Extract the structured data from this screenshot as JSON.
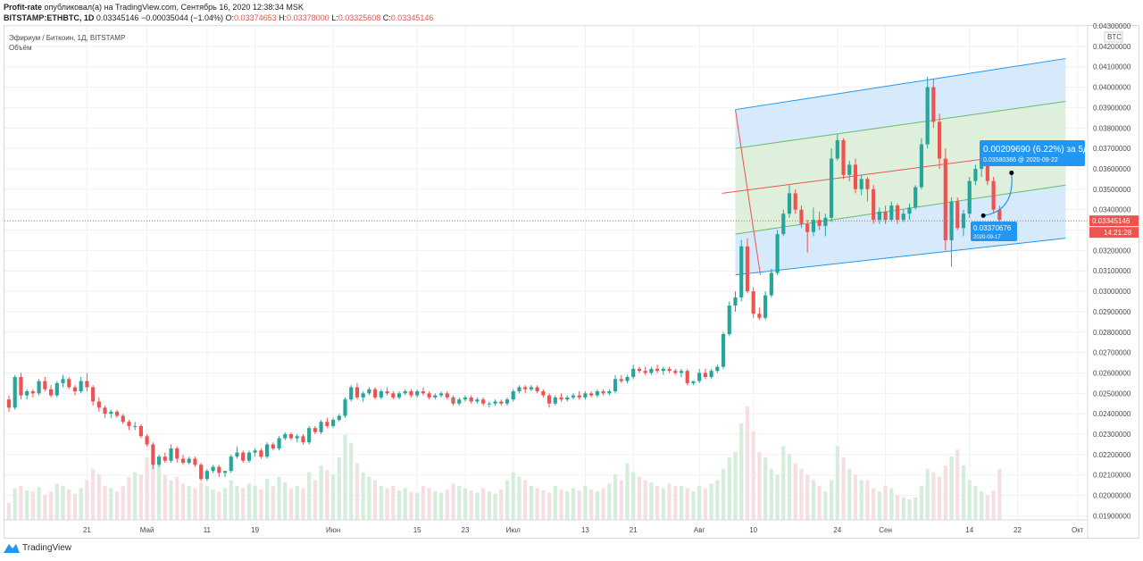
{
  "header": {
    "author": "Profit-rate",
    "published_text": "опубликовал(а) на TradingView.com, Сентябрь 16, 2020 12:38:34 MSK",
    "symbol": "BITSTAMP:ETHBTC, 1D",
    "last": "0.03345146",
    "change": "−0.00035044 (−1.04%)",
    "o_label": "O:",
    "o": "0.03374653",
    "h_label": "H:",
    "h": "0.03378000",
    "l_label": "L:",
    "l": "0.03325608",
    "c_label": "C:",
    "c": "0.03345146"
  },
  "legend": {
    "title": "Эфириум / Биткоин, 1Д, BITSTAMP",
    "volume": "Объём"
  },
  "footer": {
    "brand": "TradingView"
  },
  "colors": {
    "up": "#26a69a",
    "down": "#ef5350",
    "vol_up": "#d5eddb",
    "vol_down": "#f5dfe2",
    "channel_outer": "#cfe6fb",
    "channel_inner": "#dff0d8",
    "accent": "#2196f3"
  },
  "chart_data": {
    "type": "candlestick",
    "price_axis": {
      "unit": "BTC",
      "ticks": [
        "0.04300000",
        "0.04200000",
        "0.04100000",
        "0.04000000",
        "0.03900000",
        "0.03800000",
        "0.03700000",
        "0.03600000",
        "0.03500000",
        "0.03400000",
        "0.03300000",
        "0.03200000",
        "0.03100000",
        "0.03000000",
        "0.02900000",
        "0.02800000",
        "0.02700000",
        "0.02600000",
        "0.02500000",
        "0.02400000",
        "0.02300000",
        "0.02200000",
        "0.02100000",
        "0.02000000",
        "0.01900000"
      ],
      "ylim": [
        0.0188,
        0.043
      ]
    },
    "time_axis": {
      "labels": [
        "21",
        "Май",
        "11",
        "19",
        "Июн",
        "15",
        "23",
        "Июл",
        "13",
        "21",
        "Авг",
        "10",
        "24",
        "Сен",
        "14",
        "22",
        "Окт"
      ],
      "start_date": "2020-04-08",
      "end_date": "2020-10-02"
    },
    "candles": [
      [
        0.0247,
        0.0249,
        0.0241,
        0.0243
      ],
      [
        0.0243,
        0.0259,
        0.0242,
        0.0258
      ],
      [
        0.0258,
        0.026,
        0.0247,
        0.0249
      ],
      [
        0.0249,
        0.0252,
        0.0247,
        0.0251
      ],
      [
        0.0251,
        0.0252,
        0.0248,
        0.025
      ],
      [
        0.025,
        0.0257,
        0.0249,
        0.0256
      ],
      [
        0.0256,
        0.0258,
        0.0251,
        0.0252
      ],
      [
        0.0252,
        0.0254,
        0.0248,
        0.0249
      ],
      [
        0.0249,
        0.0256,
        0.0248,
        0.0255
      ],
      [
        0.0255,
        0.0259,
        0.0253,
        0.0257
      ],
      [
        0.0257,
        0.0258,
        0.0252,
        0.0253
      ],
      [
        0.0253,
        0.0254,
        0.0249,
        0.0251
      ],
      [
        0.0251,
        0.0258,
        0.025,
        0.0256
      ],
      [
        0.0256,
        0.026,
        0.0251,
        0.0253
      ],
      [
        0.0253,
        0.0254,
        0.0244,
        0.0246
      ],
      [
        0.0246,
        0.0248,
        0.0241,
        0.0243
      ],
      [
        0.0243,
        0.0244,
        0.0238,
        0.024
      ],
      [
        0.024,
        0.0242,
        0.0238,
        0.0241
      ],
      [
        0.0241,
        0.0242,
        0.0238,
        0.0239
      ],
      [
        0.0239,
        0.024,
        0.0235,
        0.0236
      ],
      [
        0.0236,
        0.0237,
        0.0232,
        0.0234
      ],
      [
        0.0234,
        0.0236,
        0.0232,
        0.0234
      ],
      [
        0.0234,
        0.0235,
        0.0228,
        0.0229
      ],
      [
        0.0229,
        0.023,
        0.0224,
        0.0225
      ],
      [
        0.0225,
        0.0226,
        0.0213,
        0.0215
      ],
      [
        0.0215,
        0.022,
        0.0214,
        0.0219
      ],
      [
        0.0219,
        0.0221,
        0.0216,
        0.0217
      ],
      [
        0.0217,
        0.0225,
        0.0216,
        0.0223
      ],
      [
        0.0223,
        0.0224,
        0.0216,
        0.0218
      ],
      [
        0.0218,
        0.022,
        0.0215,
        0.0216
      ],
      [
        0.0216,
        0.0219,
        0.0215,
        0.0218
      ],
      [
        0.0218,
        0.0219,
        0.0214,
        0.0215
      ],
      [
        0.0215,
        0.0216,
        0.0207,
        0.0208
      ],
      [
        0.0208,
        0.0213,
        0.0207,
        0.0212
      ],
      [
        0.0212,
        0.0215,
        0.0211,
        0.0214
      ],
      [
        0.0214,
        0.0215,
        0.0209,
        0.0211
      ],
      [
        0.0211,
        0.0212,
        0.0209,
        0.0212
      ],
      [
        0.0212,
        0.022,
        0.0211,
        0.0219
      ],
      [
        0.0219,
        0.0224,
        0.0218,
        0.0221
      ],
      [
        0.0221,
        0.0222,
        0.0216,
        0.0217
      ],
      [
        0.0217,
        0.0222,
        0.0216,
        0.0221
      ],
      [
        0.0221,
        0.0223,
        0.0219,
        0.0222
      ],
      [
        0.0222,
        0.0223,
        0.0218,
        0.0219
      ],
      [
        0.0219,
        0.0226,
        0.0218,
        0.0225
      ],
      [
        0.0225,
        0.0226,
        0.0222,
        0.0223
      ],
      [
        0.0223,
        0.0229,
        0.0222,
        0.0228
      ],
      [
        0.0228,
        0.0231,
        0.0227,
        0.023
      ],
      [
        0.023,
        0.0231,
        0.0227,
        0.0228
      ],
      [
        0.0228,
        0.023,
        0.0226,
        0.0229
      ],
      [
        0.0229,
        0.023,
        0.0225,
        0.0226
      ],
      [
        0.0226,
        0.0234,
        0.0225,
        0.0233
      ],
      [
        0.0233,
        0.0234,
        0.023,
        0.0231
      ],
      [
        0.0231,
        0.0237,
        0.023,
        0.0236
      ],
      [
        0.0236,
        0.0238,
        0.0233,
        0.0234
      ],
      [
        0.0234,
        0.0238,
        0.0233,
        0.0237
      ],
      [
        0.0237,
        0.024,
        0.0236,
        0.0239
      ],
      [
        0.0239,
        0.0248,
        0.0238,
        0.0247
      ],
      [
        0.0247,
        0.0254,
        0.0246,
        0.0253
      ],
      [
        0.0253,
        0.0255,
        0.0247,
        0.0248
      ],
      [
        0.0248,
        0.0251,
        0.0246,
        0.025
      ],
      [
        0.025,
        0.0253,
        0.0249,
        0.0252
      ],
      [
        0.0252,
        0.0253,
        0.0247,
        0.0248
      ],
      [
        0.0248,
        0.0252,
        0.0247,
        0.0251
      ],
      [
        0.0251,
        0.0253,
        0.0249,
        0.025
      ],
      [
        0.025,
        0.0251,
        0.0247,
        0.0248
      ],
      [
        0.0248,
        0.0251,
        0.0247,
        0.025
      ],
      [
        0.025,
        0.0252,
        0.0249,
        0.0251
      ],
      [
        0.0251,
        0.0252,
        0.0248,
        0.0249
      ],
      [
        0.0249,
        0.0252,
        0.0248,
        0.0251
      ],
      [
        0.0251,
        0.0253,
        0.0249,
        0.025
      ],
      [
        0.025,
        0.0251,
        0.0247,
        0.0248
      ],
      [
        0.0248,
        0.025,
        0.0247,
        0.0249
      ],
      [
        0.0249,
        0.0251,
        0.0248,
        0.025
      ],
      [
        0.025,
        0.0251,
        0.0247,
        0.0248
      ],
      [
        0.0248,
        0.0249,
        0.0244,
        0.0245
      ],
      [
        0.0245,
        0.0248,
        0.0244,
        0.0247
      ],
      [
        0.0247,
        0.0249,
        0.0246,
        0.0248
      ],
      [
        0.0248,
        0.0249,
        0.0245,
        0.0246
      ],
      [
        0.0246,
        0.0248,
        0.0245,
        0.0247
      ],
      [
        0.0247,
        0.0248,
        0.0244,
        0.0245
      ],
      [
        0.0245,
        0.0246,
        0.0243,
        0.0245
      ],
      [
        0.0245,
        0.0247,
        0.0244,
        0.0246
      ],
      [
        0.0246,
        0.0247,
        0.0244,
        0.0245
      ],
      [
        0.0245,
        0.0248,
        0.0244,
        0.0247
      ],
      [
        0.0247,
        0.0252,
        0.0246,
        0.0251
      ],
      [
        0.0251,
        0.0254,
        0.025,
        0.0253
      ],
      [
        0.0253,
        0.0254,
        0.025,
        0.0252
      ],
      [
        0.0252,
        0.0254,
        0.0251,
        0.0253
      ],
      [
        0.0253,
        0.0254,
        0.025,
        0.0251
      ],
      [
        0.0251,
        0.0252,
        0.0248,
        0.0249
      ],
      [
        0.0249,
        0.025,
        0.0243,
        0.0245
      ],
      [
        0.0245,
        0.0249,
        0.0244,
        0.0248
      ],
      [
        0.0248,
        0.025,
        0.0246,
        0.0247
      ],
      [
        0.0247,
        0.0249,
        0.0246,
        0.0248
      ],
      [
        0.0248,
        0.025,
        0.0247,
        0.0249
      ],
      [
        0.0249,
        0.0251,
        0.0247,
        0.0248
      ],
      [
        0.0248,
        0.0251,
        0.0247,
        0.025
      ],
      [
        0.025,
        0.0251,
        0.0248,
        0.0249
      ],
      [
        0.0249,
        0.0252,
        0.0248,
        0.0251
      ],
      [
        0.0251,
        0.0252,
        0.0249,
        0.025
      ],
      [
        0.025,
        0.0252,
        0.0249,
        0.0251
      ],
      [
        0.0251,
        0.0259,
        0.025,
        0.0257
      ],
      [
        0.0257,
        0.0259,
        0.0255,
        0.0256
      ],
      [
        0.0256,
        0.0259,
        0.0255,
        0.0258
      ],
      [
        0.0258,
        0.0264,
        0.0257,
        0.0262
      ],
      [
        0.0262,
        0.0263,
        0.026,
        0.0261
      ],
      [
        0.0261,
        0.0263,
        0.0259,
        0.026
      ],
      [
        0.026,
        0.0263,
        0.0259,
        0.0262
      ],
      [
        0.0262,
        0.0264,
        0.026,
        0.0261
      ],
      [
        0.0261,
        0.0263,
        0.0259,
        0.0262
      ],
      [
        0.0262,
        0.0263,
        0.026,
        0.0261
      ],
      [
        0.0261,
        0.0262,
        0.0259,
        0.026
      ],
      [
        0.026,
        0.0262,
        0.0258,
        0.0261
      ],
      [
        0.0261,
        0.0262,
        0.0254,
        0.0255
      ],
      [
        0.0255,
        0.0256,
        0.0254,
        0.0256
      ],
      [
        0.0256,
        0.0262,
        0.0255,
        0.026
      ],
      [
        0.026,
        0.0262,
        0.0257,
        0.0258
      ],
      [
        0.0258,
        0.0262,
        0.0257,
        0.0261
      ],
      [
        0.0261,
        0.0264,
        0.026,
        0.0263
      ],
      [
        0.0263,
        0.028,
        0.0262,
        0.0279
      ],
      [
        0.0279,
        0.0295,
        0.0278,
        0.0293
      ],
      [
        0.0293,
        0.03,
        0.029,
        0.0297
      ],
      [
        0.0297,
        0.0325,
        0.0295,
        0.0322
      ],
      [
        0.0322,
        0.0326,
        0.0299,
        0.03
      ],
      [
        0.03,
        0.0302,
        0.0287,
        0.0289
      ],
      [
        0.0289,
        0.0292,
        0.0286,
        0.0287
      ],
      [
        0.0287,
        0.03,
        0.0286,
        0.0298
      ],
      [
        0.0298,
        0.0311,
        0.0297,
        0.0309
      ],
      [
        0.0309,
        0.033,
        0.0308,
        0.0328
      ],
      [
        0.0328,
        0.034,
        0.0327,
        0.0338
      ],
      [
        0.0338,
        0.0352,
        0.0336,
        0.0348
      ],
      [
        0.0348,
        0.035,
        0.0338,
        0.034
      ],
      [
        0.034,
        0.0342,
        0.0331,
        0.0333
      ],
      [
        0.0333,
        0.0335,
        0.0319,
        0.0329
      ],
      [
        0.0329,
        0.0341,
        0.0327,
        0.0335
      ],
      [
        0.0335,
        0.0339,
        0.033,
        0.0332
      ],
      [
        0.0332,
        0.0338,
        0.0327,
        0.0336
      ],
      [
        0.0336,
        0.037,
        0.0334,
        0.0365
      ],
      [
        0.0365,
        0.0377,
        0.0364,
        0.0374
      ],
      [
        0.0374,
        0.0375,
        0.0355,
        0.0357
      ],
      [
        0.0357,
        0.0364,
        0.0354,
        0.0362
      ],
      [
        0.0362,
        0.0365,
        0.0348,
        0.035
      ],
      [
        0.035,
        0.0357,
        0.0347,
        0.0355
      ],
      [
        0.0355,
        0.0356,
        0.0344,
        0.035
      ],
      [
        0.035,
        0.0352,
        0.0333,
        0.0335
      ],
      [
        0.0335,
        0.0341,
        0.0333,
        0.0339
      ],
      [
        0.0339,
        0.0342,
        0.0333,
        0.0335
      ],
      [
        0.0335,
        0.0344,
        0.0334,
        0.0342
      ],
      [
        0.0342,
        0.0343,
        0.0333,
        0.0335
      ],
      [
        0.0335,
        0.034,
        0.0334,
        0.0338
      ],
      [
        0.0338,
        0.0343,
        0.0335,
        0.0341
      ],
      [
        0.0341,
        0.0352,
        0.034,
        0.0351
      ],
      [
        0.0351,
        0.0375,
        0.035,
        0.0372
      ],
      [
        0.0372,
        0.0405,
        0.037,
        0.04
      ],
      [
        0.04,
        0.0404,
        0.038,
        0.0383
      ],
      [
        0.0383,
        0.0387,
        0.036,
        0.0365
      ],
      [
        0.0365,
        0.037,
        0.032,
        0.0325
      ],
      [
        0.0325,
        0.0346,
        0.0312,
        0.0344
      ],
      [
        0.0344,
        0.0346,
        0.033,
        0.0331
      ],
      [
        0.0331,
        0.034,
        0.0327,
        0.0338
      ],
      [
        0.0338,
        0.0356,
        0.0336,
        0.0354
      ],
      [
        0.0354,
        0.0362,
        0.0352,
        0.036
      ],
      [
        0.036,
        0.0372,
        0.0356,
        0.037
      ],
      [
        0.037,
        0.0371,
        0.0352,
        0.0354
      ],
      [
        0.0354,
        0.0356,
        0.0338,
        0.034
      ],
      [
        0.034,
        0.0342,
        0.0333,
        0.0335
      ]
    ],
    "volume_relative": [
      0.15,
      0.28,
      0.3,
      0.26,
      0.25,
      0.29,
      0.22,
      0.25,
      0.32,
      0.3,
      0.27,
      0.23,
      0.28,
      0.35,
      0.45,
      0.4,
      0.3,
      0.28,
      0.25,
      0.3,
      0.38,
      0.42,
      0.4,
      0.55,
      0.6,
      0.48,
      0.4,
      0.35,
      0.38,
      0.32,
      0.3,
      0.28,
      0.33,
      0.3,
      0.27,
      0.25,
      0.28,
      0.35,
      0.3,
      0.28,
      0.32,
      0.3,
      0.27,
      0.36,
      0.3,
      0.38,
      0.33,
      0.28,
      0.3,
      0.28,
      0.42,
      0.35,
      0.48,
      0.44,
      0.4,
      0.55,
      0.75,
      0.68,
      0.5,
      0.42,
      0.38,
      0.35,
      0.3,
      0.28,
      0.3,
      0.26,
      0.28,
      0.25,
      0.24,
      0.3,
      0.28,
      0.25,
      0.24,
      0.27,
      0.32,
      0.3,
      0.28,
      0.26,
      0.24,
      0.28,
      0.25,
      0.23,
      0.27,
      0.35,
      0.42,
      0.38,
      0.35,
      0.3,
      0.28,
      0.26,
      0.24,
      0.3,
      0.27,
      0.25,
      0.28,
      0.26,
      0.3,
      0.27,
      0.25,
      0.28,
      0.32,
      0.4,
      0.35,
      0.5,
      0.42,
      0.38,
      0.35,
      0.33,
      0.3,
      0.28,
      0.32,
      0.3,
      0.3,
      0.28,
      0.25,
      0.3,
      0.28,
      0.32,
      0.35,
      0.45,
      0.55,
      0.6,
      0.85,
      1.0,
      0.78,
      0.6,
      0.55,
      0.45,
      0.4,
      0.65,
      0.58,
      0.5,
      0.45,
      0.4,
      0.35,
      0.3,
      0.25,
      0.35,
      0.65,
      0.55,
      0.45,
      0.4,
      0.35,
      0.35,
      0.28,
      0.25,
      0.3,
      0.28,
      0.22,
      0.2,
      0.18,
      0.2,
      0.3,
      0.45,
      0.42,
      0.38,
      0.48,
      0.56,
      0.62,
      0.48,
      0.35,
      0.3,
      0.25,
      0.22,
      0.26,
      0.45,
      0.3,
      0.2,
      0.1
    ]
  },
  "annotations": {
    "projection_label": "0.00209690 (6.22%) за 5д",
    "projection_detail": "0.03580366 @ 2020-09-22",
    "start_price": "0.03370676",
    "start_date": "2020-09-17",
    "current_price": "0.03345146",
    "countdown": "14:21:28"
  }
}
